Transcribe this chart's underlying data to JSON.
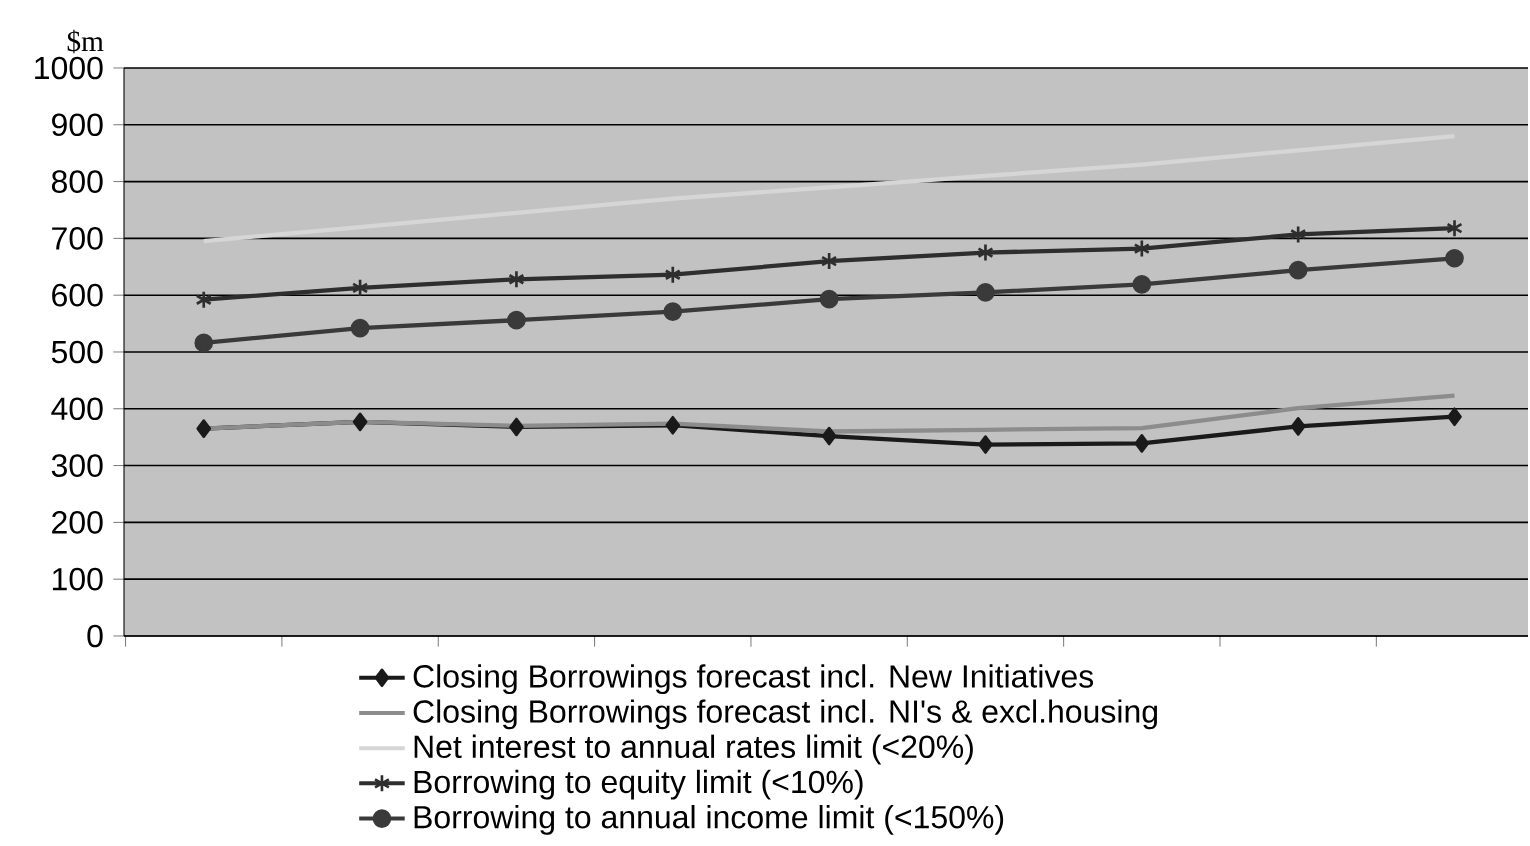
{
  "chart_data": {
    "type": "line",
    "ylabel": "$m",
    "categories": [
      null,
      null,
      null,
      null,
      null,
      null,
      null,
      null,
      null
    ],
    "ylim": [
      0,
      1000
    ],
    "yticks": [
      0,
      100,
      200,
      300,
      400,
      500,
      600,
      700,
      800,
      900,
      1000
    ],
    "grid": "y",
    "legend": "bottom",
    "line_style": "solid",
    "series": [
      {
        "name": "Closing Borrowings forecast incl. New Initiatives",
        "color": "#1a1a1a",
        "marker": "diamond",
        "values": [
          365,
          377,
          368,
          371,
          352,
          337,
          339,
          369,
          386
        ]
      },
      {
        "name": "Closing Borrowings forecast incl. NI's & excl.housing",
        "color": "#8c8c8c",
        "marker": "none",
        "values": [
          365,
          377,
          370,
          374,
          360,
          363,
          366,
          401,
          423
        ]
      },
      {
        "name": "Net interest to annual rates limit (<20%)",
        "color": "#d6d6d6",
        "marker": "none",
        "values": [
          695,
          720,
          745,
          770,
          790,
          810,
          830,
          855,
          880
        ]
      },
      {
        "name": "Borrowing to equity limit (<10%)",
        "color": "#2e2e2e",
        "marker": "cross",
        "values": [
          592,
          613,
          628,
          636,
          660,
          675,
          682,
          707,
          718
        ]
      },
      {
        "name": "Borrowing to annual income limit (<150%)",
        "color": "#3a3a3a",
        "marker": "circle",
        "values": [
          516,
          542,
          556,
          571,
          593,
          605,
          619,
          644,
          665
        ]
      }
    ]
  }
}
